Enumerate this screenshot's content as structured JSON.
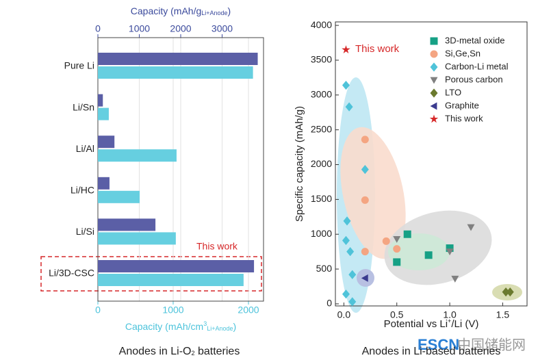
{
  "chart_data": [
    {
      "type": "bar",
      "orientation": "horizontal",
      "categories": [
        "Pure Li",
        "Li/Sn",
        "Li/Al",
        "Li/HC",
        "Li/Si",
        "Li/3D-CSC"
      ],
      "series": [
        {
          "axis": "x2",
          "color": "#5b5fa6",
          "values": [
            3860,
            120,
            400,
            280,
            1390,
            3770
          ]
        },
        {
          "axis": "x",
          "color": "#66cfe0",
          "values": [
            2060,
            145,
            1045,
            555,
            1035,
            1935
          ]
        }
      ],
      "x2label": [
        "Capacity (mAh/g",
        "Li+Anode",
        ")"
      ],
      "x2lim": [
        0,
        4000
      ],
      "x2ticks": [
        0,
        1000,
        2000,
        3000
      ],
      "x2color": "#3b4a9c",
      "xlabel": [
        "Capacity (mAh/cm",
        "3",
        "Li+Anode",
        ")"
      ],
      "xlim": [
        0,
        2200
      ],
      "xticks": [
        0,
        1000,
        2000
      ],
      "xcolor": "#4cc3db",
      "annotation": "This work",
      "caption": [
        "Anodes in Li-O",
        "2",
        " batteries"
      ],
      "grid": true
    },
    {
      "type": "scatter",
      "series": [
        {
          "name": "3D-metal oxide",
          "color": "#16a085",
          "marker": "square",
          "x": [
            0.5,
            0.6,
            0.8,
            1.0
          ],
          "values": [
            600,
            1000,
            700,
            800
          ]
        },
        {
          "name": "Si,Ge,Sn",
          "color": "#f4a582",
          "marker": "circle",
          "x": [
            0.2,
            0.2,
            0.2,
            0.4,
            0.5
          ],
          "values": [
            2360,
            1490,
            750,
            900,
            790
          ]
        },
        {
          "name": "Carbon-Li metal",
          "color": "#4fc3d9",
          "marker": "diamond",
          "x": [
            0.02,
            0.05,
            0.2,
            0.03,
            0.02,
            0.06,
            0.08,
            0.02,
            0.08
          ],
          "values": [
            3140,
            2830,
            1930,
            1190,
            910,
            750,
            420,
            140,
            30
          ]
        },
        {
          "name": "Porous carbon",
          "color": "#808080",
          "marker": "triangle-down",
          "x": [
            0.5,
            1.0,
            1.2,
            1.05
          ],
          "values": [
            930,
            750,
            1100,
            360
          ]
        },
        {
          "name": "LTO",
          "color": "#6b7a2e",
          "marker": "diamond",
          "x": [
            1.53,
            1.57
          ],
          "values": [
            170,
            170
          ]
        },
        {
          "name": "Graphite",
          "color": "#3b3b8f",
          "marker": "triangle-left",
          "x": [
            0.2
          ],
          "values": [
            370
          ]
        },
        {
          "name": "This work",
          "color": "#d62728",
          "marker": "star",
          "x": [
            0.02
          ],
          "values": [
            3650
          ]
        }
      ],
      "annotation": "This work",
      "xlabel": [
        "Potential vs Li",
        "+",
        "/Li (V)"
      ],
      "ylabel": "Specific capacity (mAh/g)",
      "xlim": [
        -0.08,
        1.73
      ],
      "xticks": [
        {
          "value": 0,
          "label": "0.0"
        },
        {
          "value": 0.5,
          "label": "0.5"
        },
        {
          "value": 1,
          "label": "1.0"
        },
        {
          "value": 1.5,
          "label": "1.5"
        }
      ],
      "ylim": [
        -30,
        4050
      ],
      "yticks": [
        0,
        500,
        1000,
        1500,
        2000,
        2500,
        3000,
        3500,
        4000
      ],
      "legend": "upper right",
      "caption": "Anodes in Li-based batteries"
    }
  ],
  "watermark": [
    "ESCN",
    "中国储能网"
  ]
}
